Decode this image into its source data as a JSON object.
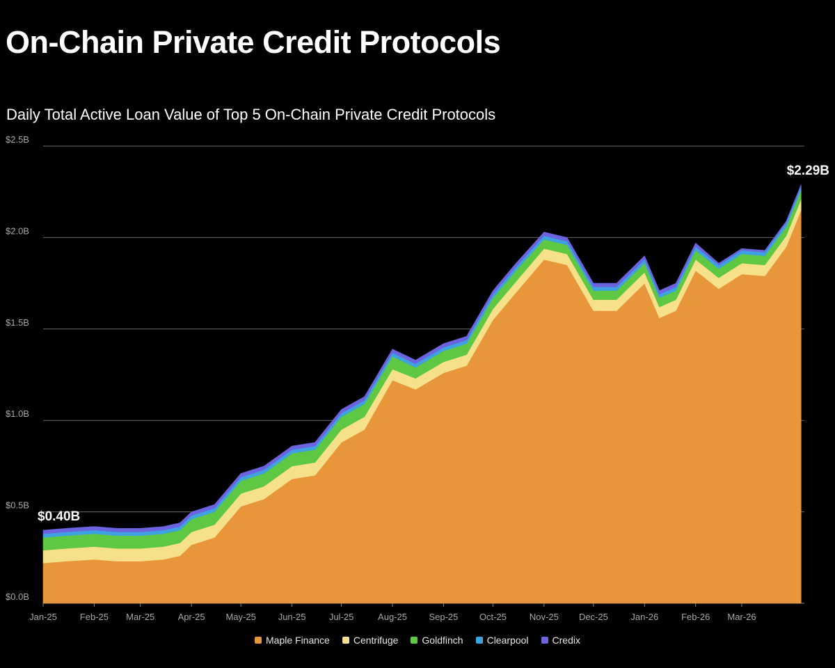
{
  "header": {
    "title": "On-Chain Private Credit Protocols"
  },
  "chart_data": {
    "type": "area",
    "stacked": true,
    "title": "Daily Total Active Loan Value of Top 5 On-Chain Private Credit Protocols",
    "xlabel": "",
    "ylabel": "",
    "ylim": [
      0,
      2.5
    ],
    "y_unit": "B",
    "y_ticks": [
      {
        "value": 0.0,
        "label": "$0.0B"
      },
      {
        "value": 0.5,
        "label": "$0.5B"
      },
      {
        "value": 1.0,
        "label": "$1.0B"
      },
      {
        "value": 1.5,
        "label": "$1.5B"
      },
      {
        "value": 2.0,
        "label": "$2.0B"
      },
      {
        "value": 2.5,
        "label": "$2.5B"
      }
    ],
    "x_ticks": [
      {
        "date": "2025-01-01",
        "label": "Jan-25"
      },
      {
        "date": "2025-02-01",
        "label": "Feb-25"
      },
      {
        "date": "2025-03-01",
        "label": "Mar-25"
      },
      {
        "date": "2025-04-01",
        "label": "Apr-25"
      },
      {
        "date": "2025-05-01",
        "label": "May-25"
      },
      {
        "date": "2025-06-01",
        "label": "Jun-25"
      },
      {
        "date": "2025-07-01",
        "label": "Jul-25"
      },
      {
        "date": "2025-08-01",
        "label": "Aug-25"
      },
      {
        "date": "2025-09-01",
        "label": "Sep-25"
      },
      {
        "date": "2025-10-01",
        "label": "Oct-25"
      },
      {
        "date": "2025-11-01",
        "label": "Nov-25"
      },
      {
        "date": "2025-12-01",
        "label": "Dec-25"
      },
      {
        "date": "2026-01-01",
        "label": "Jan-26"
      },
      {
        "date": "2026-02-01",
        "label": "Feb-26"
      },
      {
        "date": "2026-03-01",
        "label": "Mar-26"
      }
    ],
    "x_end": "2026-04-08",
    "grid": "horizontal",
    "legend_position": "bottom-center",
    "x": [
      "2025-01-01",
      "2025-01-15",
      "2025-02-01",
      "2025-02-15",
      "2025-03-01",
      "2025-03-15",
      "2025-03-25",
      "2025-04-01",
      "2025-04-15",
      "2025-05-01",
      "2025-05-15",
      "2025-06-01",
      "2025-06-15",
      "2025-07-01",
      "2025-07-15",
      "2025-08-01",
      "2025-08-15",
      "2025-09-01",
      "2025-09-15",
      "2025-10-01",
      "2025-10-15",
      "2025-11-01",
      "2025-11-15",
      "2025-12-01",
      "2025-12-15",
      "2026-01-01",
      "2026-01-10",
      "2026-01-20",
      "2026-02-01",
      "2026-02-15",
      "2026-03-01",
      "2026-03-15",
      "2026-03-28",
      "2026-04-06"
    ],
    "series": [
      {
        "name": "Maple Finance",
        "color": "#e8963a",
        "values": [
          0.22,
          0.23,
          0.24,
          0.23,
          0.23,
          0.24,
          0.26,
          0.32,
          0.36,
          0.53,
          0.57,
          0.68,
          0.7,
          0.88,
          0.95,
          1.22,
          1.17,
          1.26,
          1.3,
          1.55,
          1.7,
          1.88,
          1.85,
          1.6,
          1.6,
          1.75,
          1.56,
          1.6,
          1.82,
          1.72,
          1.8,
          1.79,
          1.95,
          2.15
        ]
      },
      {
        "name": "Centrifuge",
        "color": "#f7e08a",
        "values": [
          0.07,
          0.07,
          0.07,
          0.07,
          0.07,
          0.07,
          0.07,
          0.07,
          0.07,
          0.07,
          0.07,
          0.07,
          0.07,
          0.07,
          0.07,
          0.06,
          0.06,
          0.06,
          0.06,
          0.06,
          0.06,
          0.06,
          0.06,
          0.06,
          0.06,
          0.06,
          0.06,
          0.06,
          0.06,
          0.06,
          0.06,
          0.06,
          0.06,
          0.06
        ]
      },
      {
        "name": "Goldfinch",
        "color": "#5fc843",
        "values": [
          0.07,
          0.07,
          0.07,
          0.07,
          0.07,
          0.07,
          0.07,
          0.07,
          0.07,
          0.07,
          0.07,
          0.07,
          0.07,
          0.07,
          0.07,
          0.07,
          0.06,
          0.06,
          0.06,
          0.06,
          0.06,
          0.05,
          0.05,
          0.05,
          0.05,
          0.05,
          0.05,
          0.05,
          0.05,
          0.05,
          0.05,
          0.05,
          0.05,
          0.05
        ]
      },
      {
        "name": "Clearpool",
        "color": "#3fa2e0",
        "values": [
          0.02,
          0.02,
          0.02,
          0.02,
          0.02,
          0.02,
          0.02,
          0.02,
          0.02,
          0.02,
          0.02,
          0.02,
          0.02,
          0.02,
          0.02,
          0.02,
          0.02,
          0.02,
          0.02,
          0.02,
          0.02,
          0.02,
          0.02,
          0.02,
          0.02,
          0.02,
          0.02,
          0.02,
          0.02,
          0.02,
          0.02,
          0.02,
          0.02,
          0.02
        ]
      },
      {
        "name": "Credix",
        "color": "#6b63e0",
        "values": [
          0.02,
          0.02,
          0.02,
          0.02,
          0.02,
          0.02,
          0.02,
          0.02,
          0.02,
          0.02,
          0.02,
          0.02,
          0.02,
          0.02,
          0.02,
          0.02,
          0.02,
          0.02,
          0.02,
          0.02,
          0.02,
          0.02,
          0.02,
          0.02,
          0.02,
          0.02,
          0.02,
          0.02,
          0.02,
          0.01,
          0.01,
          0.01,
          0.01,
          0.01
        ]
      }
    ],
    "annotations": [
      {
        "text": "$0.40B",
        "x": "2025-01-01",
        "y": 0.4
      },
      {
        "text": "$2.29B",
        "x": "2026-04-06",
        "y": 2.29
      }
    ]
  }
}
